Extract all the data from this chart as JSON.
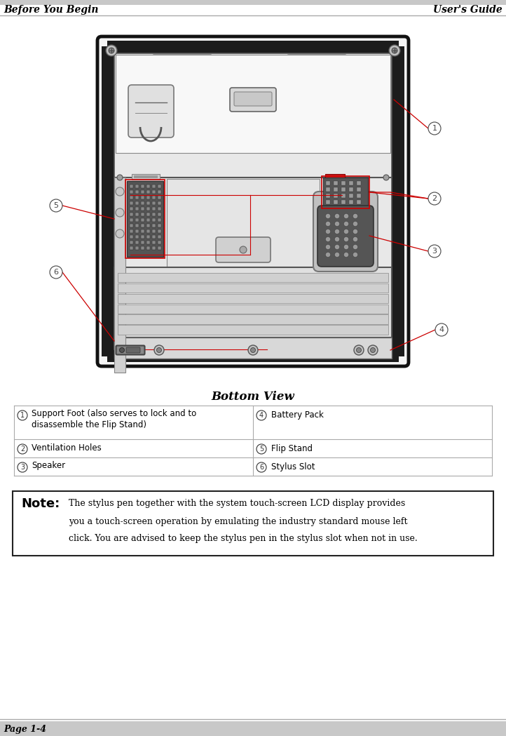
{
  "header_left": "Before You Begin",
  "header_right": "User's Guide",
  "footer_left": "Page 1-4",
  "title": "Bottom View",
  "table_rows": [
    {
      "num": "1",
      "left_text": "Support Foot (also serves to lock and to\ndisassemble the Flip Stand)",
      "right_num": "4",
      "right_text": "Battery Pack"
    },
    {
      "num": "2",
      "left_text": "Ventilation Holes",
      "right_num": "5",
      "right_text": "Flip Stand"
    },
    {
      "num": "3",
      "left_text": "Speaker",
      "right_num": "6",
      "right_text": "Stylus Slot"
    }
  ],
  "note_bold": "Note:",
  "note_text": "The stylus pen together with the system touch-screen LCD display provides\nyou a touch-screen operation by emulating the industry standard mouse left\nclick. You are advised to keep the stylus pen in the stylus slot when not in use.",
  "bg_color": "#ffffff",
  "header_bg": "#c8c8c8",
  "text_color": "#000000",
  "red_color": "#cc0000",
  "device_outline": "#1a1a1a",
  "device_gray_dark": "#2a2a2a",
  "device_gray_mid": "#666666",
  "device_gray_light": "#cccccc",
  "device_inner_bg": "#f0f0f0",
  "device_black_border": "#111111"
}
